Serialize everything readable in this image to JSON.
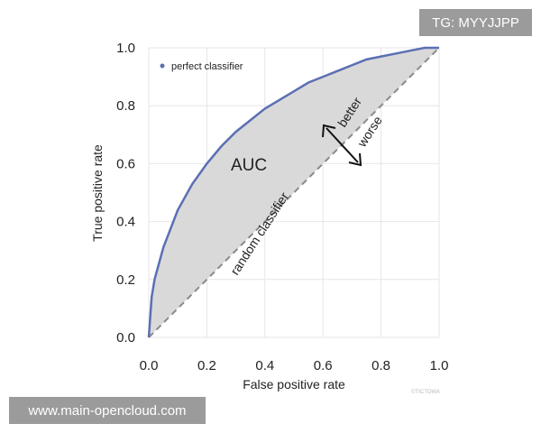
{
  "watermarks": {
    "top": "TG: MYYJJPP",
    "bottom": "www.main-opencloud.com"
  },
  "colors": {
    "curve": "#5b6fb3",
    "fill": "#d9d9d9",
    "diagonal": "#8a8a8a",
    "grid": "#e6e6e6"
  },
  "chart_data": {
    "type": "line",
    "xlabel": "False positive rate",
    "ylabel": "True positive rate",
    "xlim": [
      0,
      1
    ],
    "ylim": [
      0,
      1
    ],
    "x_ticks": [
      "0.0",
      "0.2",
      "0.4",
      "0.6",
      "0.8",
      "1.0"
    ],
    "y_ticks": [
      "0.0",
      "0.2",
      "0.4",
      "0.6",
      "0.8",
      "1.0"
    ],
    "grid": true,
    "legend": {
      "position": "top-left",
      "label": "perfect classifier"
    },
    "series": [
      {
        "name": "perfect classifier",
        "x": [
          0,
          0.01,
          0.02,
          0.05,
          0.1,
          0.15,
          0.2,
          0.25,
          0.3,
          0.35,
          0.4,
          0.45,
          0.5,
          0.55,
          0.6,
          0.65,
          0.7,
          0.75,
          0.8,
          0.85,
          0.9,
          0.95,
          1.0
        ],
        "y": [
          0,
          0.14,
          0.2,
          0.31,
          0.44,
          0.53,
          0.6,
          0.66,
          0.71,
          0.75,
          0.79,
          0.82,
          0.85,
          0.88,
          0.9,
          0.92,
          0.94,
          0.96,
          0.97,
          0.98,
          0.99,
          1.0,
          1.0
        ]
      },
      {
        "name": "random classifier",
        "x": [
          0,
          1
        ],
        "y": [
          0,
          1
        ]
      }
    ],
    "annotations": {
      "area": "AUC",
      "diagonal": "random classifier",
      "better": "better",
      "worse": "worse"
    },
    "credit": "©TICTOWA"
  }
}
